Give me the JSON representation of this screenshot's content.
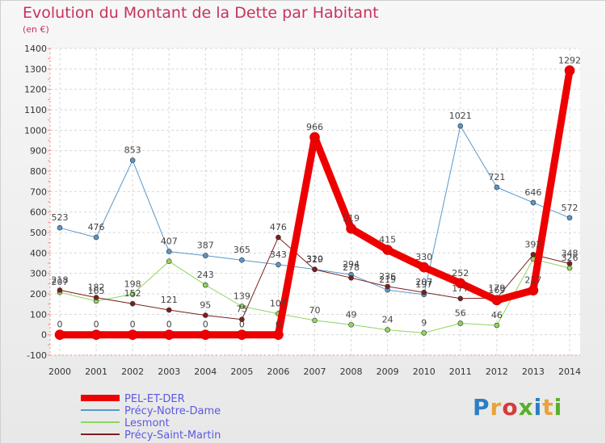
{
  "header": {
    "title": "Evolution du Montant de la Dette par Habitant",
    "subtitle": "(en €)"
  },
  "logo": {
    "text": "Proxiti",
    "colors": [
      "#2a7fc4",
      "#e8a33a",
      "#d63b3b",
      "#58b02a",
      "#2a7fc4",
      "#e8a33a",
      "#58b02a"
    ]
  },
  "chart_data": {
    "type": "line",
    "title": "Evolution du Montant de la Dette par Habitant",
    "subtitle": "(en €)",
    "x": [
      "2000",
      "2001",
      "2002",
      "2003",
      "2004",
      "2005",
      "2006",
      "2007",
      "2008",
      "2009",
      "2010",
      "2011",
      "2012",
      "2013",
      "2014"
    ],
    "ylim": [
      -100,
      1400
    ],
    "yticks": [
      -100,
      0,
      100,
      200,
      300,
      400,
      500,
      600,
      700,
      800,
      900,
      1000,
      1100,
      1200,
      1300,
      1400
    ],
    "grid": true,
    "legend_position": "bottom-left",
    "series": [
      {
        "name": "PEL-ET-DER",
        "color": "#ee0000",
        "width": 9,
        "values": [
          0,
          0,
          0,
          0,
          0,
          0,
          0,
          966,
          519,
          415,
          330,
          252,
          169,
          217,
          1292
        ],
        "labels": [
          "0",
          "0",
          "0",
          "0",
          "0",
          "0",
          "0",
          "966",
          "519",
          "415",
          "330",
          "252",
          "169",
          "217",
          "1292"
        ]
      },
      {
        "name": "Précy-Notre-Dame",
        "color": "#5a97c9",
        "width": 1,
        "values": [
          523,
          476,
          853,
          407,
          387,
          365,
          343,
          320,
          294,
          219,
          197,
          1021,
          721,
          646,
          572
        ],
        "labels": [
          "523",
          "476",
          "853",
          "407",
          "387",
          "365",
          "343",
          "320",
          "294",
          "219",
          "197",
          "1021",
          "721",
          "646",
          "572"
        ]
      },
      {
        "name": "Lesmont",
        "color": "#8fd65a",
        "width": 1,
        "values": [
          207,
          165,
          198,
          359,
          243,
          139,
          103,
          70,
          49,
          24,
          9,
          56,
          46,
          370,
          326
        ],
        "labels": [
          "207",
          "165",
          "198",
          "",
          "243",
          "139",
          "103",
          "70",
          "49",
          "24",
          "9",
          "56",
          "46",
          "",
          "326"
        ]
      },
      {
        "name": "Précy-Saint-Martin",
        "color": "#7a1f1f",
        "width": 1,
        "values": [
          218,
          182,
          152,
          121,
          95,
          75,
          476,
          319,
          278,
          236,
          207,
          177,
          179,
          392,
          348
        ],
        "labels": [
          "218",
          "182",
          "152",
          "121",
          "95",
          "75",
          "476",
          "319",
          "278",
          "236",
          "207",
          "177",
          "179",
          "392",
          "348"
        ]
      }
    ]
  }
}
